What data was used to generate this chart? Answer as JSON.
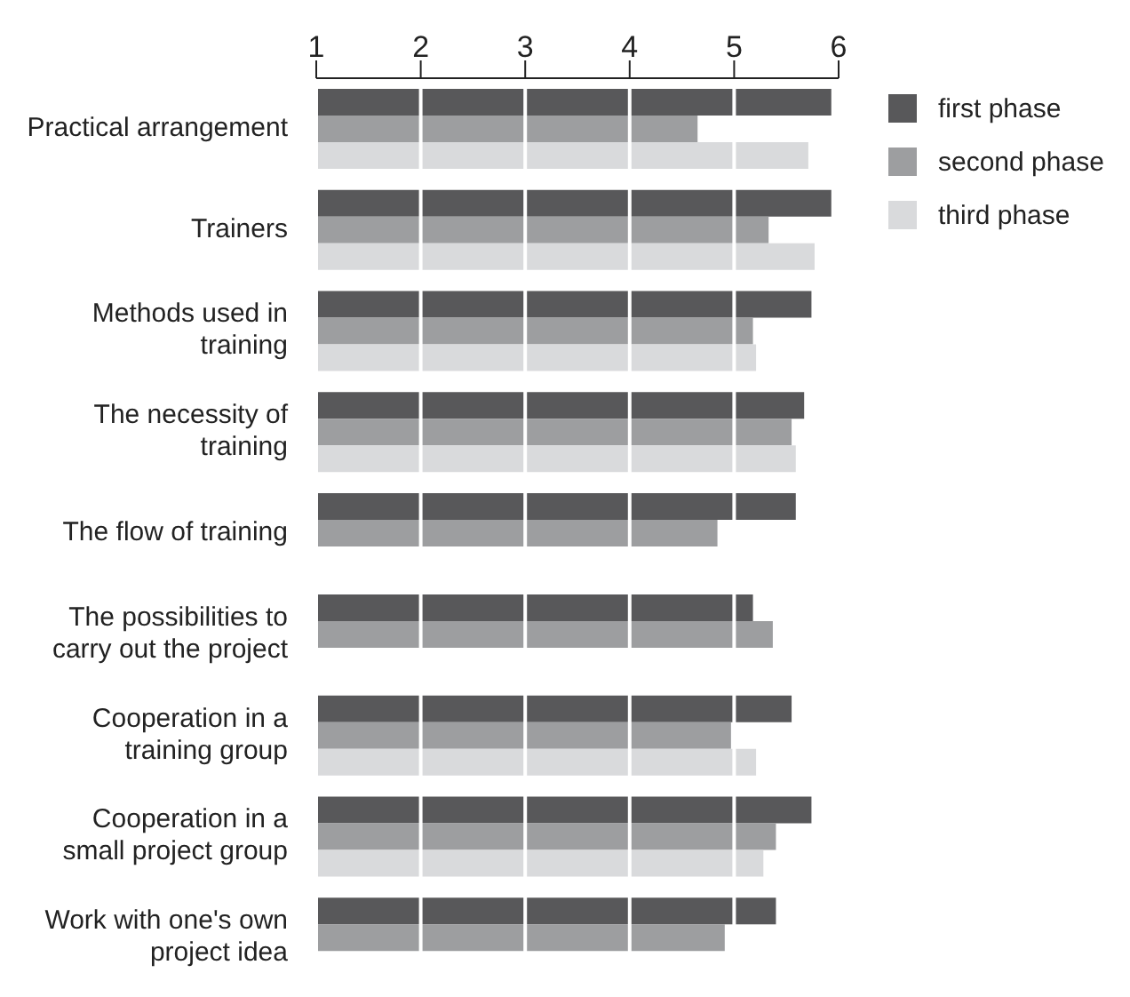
{
  "chart_data": {
    "type": "bar",
    "orientation": "horizontal",
    "categories": [
      "Practical arrangement",
      "Trainers",
      "Methods used in training",
      "The necessity of training",
      "The flow of training",
      "The possibilities to carry out the project",
      "Cooperation in a training group",
      "Cooperation in a small project group",
      "Work with one's own project idea"
    ],
    "series": [
      {
        "name": "first phase",
        "color": "#58585a",
        "values": [
          5.93,
          5.93,
          5.74,
          5.67,
          5.59,
          5.18,
          5.55,
          5.74,
          5.4
        ]
      },
      {
        "name": "second phase",
        "color": "#9d9ea0",
        "values": [
          4.65,
          5.33,
          5.18,
          5.55,
          4.84,
          5.37,
          4.97,
          5.4,
          4.91
        ]
      },
      {
        "name": "third phase",
        "color": "#d9dadc",
        "values": [
          5.71,
          5.77,
          5.21,
          5.59,
          null,
          null,
          5.21,
          5.28,
          null
        ]
      }
    ],
    "xlim": [
      1,
      6
    ],
    "xticks": [
      1,
      2,
      3,
      4,
      5,
      6
    ],
    "grid": "x",
    "legend": "top right"
  }
}
